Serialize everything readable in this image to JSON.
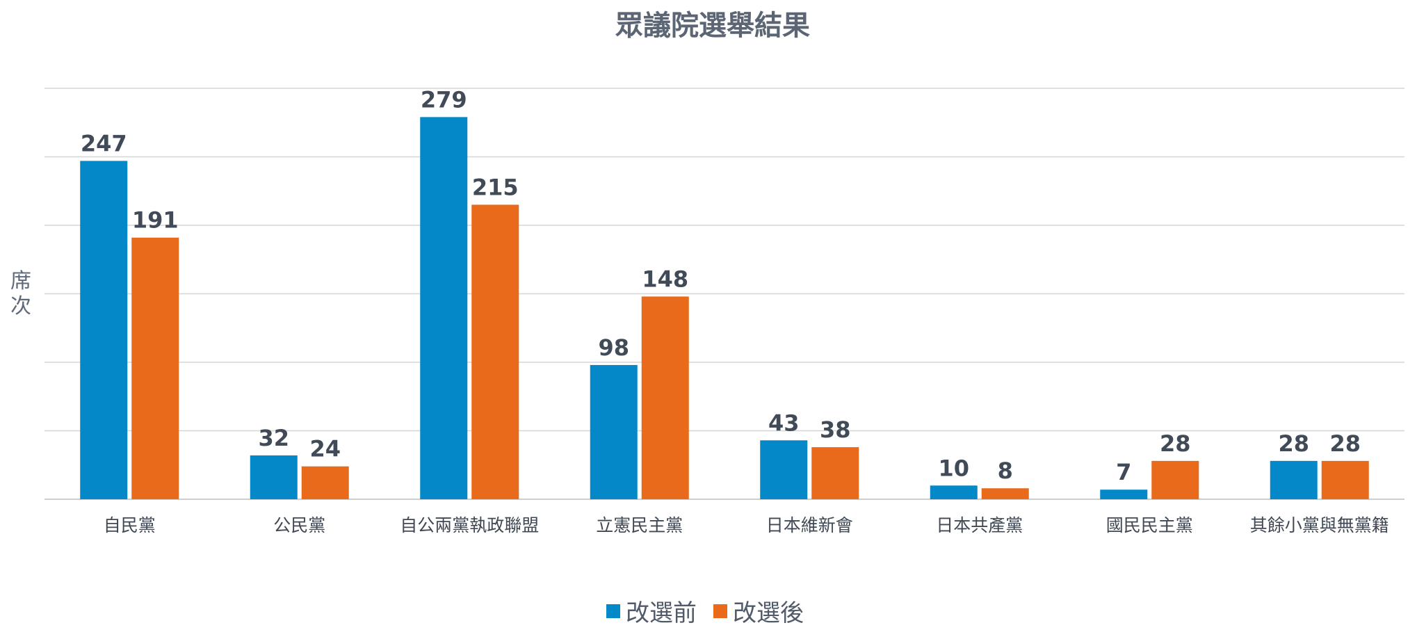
{
  "chart_data": {
    "type": "bar",
    "title": "眾議院選舉結果",
    "ylabel": "席次",
    "xlabel": "",
    "ylim": [
      0,
      300
    ],
    "grid": true,
    "legend_position": "bottom",
    "categories": [
      "自民黨",
      "公民黨",
      "自公兩黨執政聯盟",
      "立憲民主黨",
      "日本維新會",
      "日本共產黨",
      "國民民主黨",
      "其餘小黨與無黨籍"
    ],
    "series": [
      {
        "name": "改選前",
        "color": "#0488c8",
        "values": [
          247,
          32,
          279,
          98,
          43,
          10,
          7,
          28
        ]
      },
      {
        "name": "改選後",
        "color": "#e86a1a",
        "values": [
          191,
          24,
          215,
          148,
          38,
          8,
          28,
          28
        ]
      }
    ]
  }
}
